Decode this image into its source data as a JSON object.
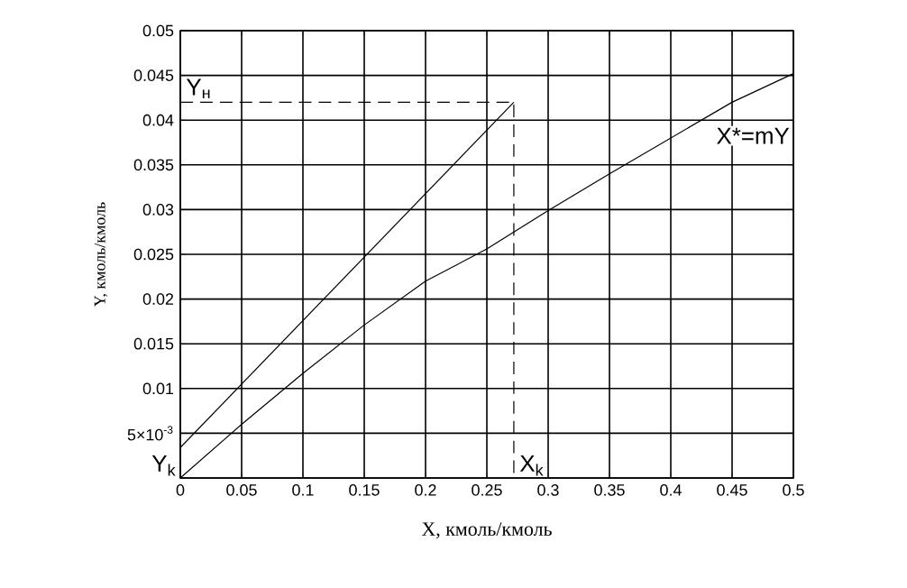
{
  "chart_data": {
    "type": "line",
    "xlabel": "X, кмоль/кмоль",
    "ylabel": "Y, кмоль/кмоль",
    "xlim": [
      0,
      0.5
    ],
    "ylim": [
      0,
      0.05
    ],
    "xticks": [
      0,
      0.05,
      0.1,
      0.15,
      0.2,
      0.25,
      0.3,
      0.35,
      0.4,
      0.45,
      0.5
    ],
    "yticks": [
      {
        "value": 0,
        "label": null
      },
      {
        "value": 0.005,
        "label": "5×10$^{-3}$"
      },
      0.01,
      0.015,
      0.02,
      0.025,
      0.03,
      0.035,
      0.04,
      0.045,
      0.05
    ],
    "grid": true,
    "marker": "none",
    "series": [
      {
        "color": "#000000",
        "line_style": "solid",
        "x": [
          0,
          0.272
        ],
        "values": [
          0.0034,
          0.042
        ]
      },
      {
        "color": "#000000",
        "line_style": "solid",
        "x": [
          0,
          0.05,
          0.1,
          0.15,
          0.2,
          0.25,
          0.3,
          0.35,
          0.4,
          0.45,
          0.5
        ],
        "values": [
          0,
          0.006,
          0.0117,
          0.0171,
          0.022,
          0.0256,
          0.0299,
          0.034,
          0.038,
          0.042,
          0.0452
        ]
      },
      {
        "color": "#000000",
        "line_style": "dashed",
        "x": [
          0,
          0.272,
          0.272
        ],
        "values": [
          0.042,
          0.042,
          0
        ]
      }
    ],
    "annotations": [
      {
        "text": "Y$_{н}$",
        "x": 0,
        "y": 0.042
      },
      {
        "text": "Y$_{k}$",
        "x": 0,
        "y": 0
      },
      {
        "text": "X$_{k}$",
        "x": 0.272,
        "y": 0
      },
      {
        "text": "X*=mY",
        "x": 0.45,
        "y": 0.042
      }
    ]
  }
}
